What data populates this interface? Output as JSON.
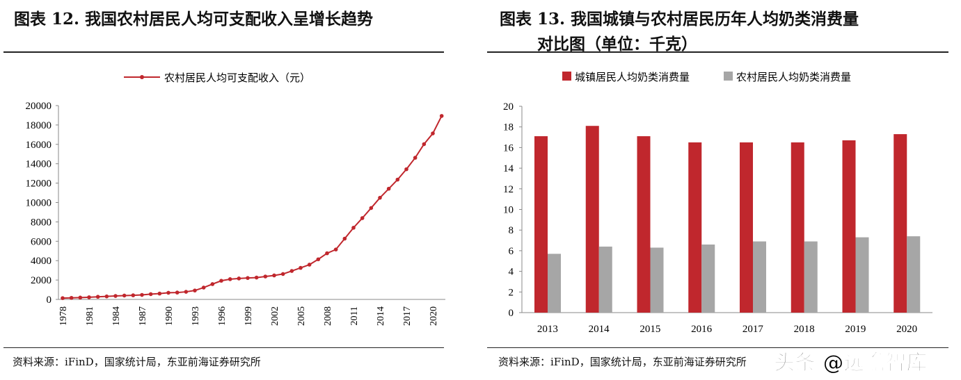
{
  "left": {
    "title": "图表 12. 我国农村居民人均可支配收入呈增长趋势",
    "source": "资料来源：iFinD，国家统计局，东亚前海证券研究所"
  },
  "right": {
    "title_line1": "图表 13. 我国城镇与农村居民历年人均奶类消费量",
    "title_line2": "对比图（单位：千克）",
    "source": "资料来源：iFinD，国家统计局，东亚前海证券研究所"
  },
  "watermark": "头条 @远瞻智库",
  "chart_data": [
    {
      "type": "line",
      "legend": "top-center",
      "series": [
        {
          "name": "农村居民人均可支配收入（元）",
          "color": "#C0272D",
          "x": [
            1978,
            1979,
            1980,
            1981,
            1982,
            1983,
            1984,
            1985,
            1986,
            1987,
            1988,
            1989,
            1990,
            1991,
            1992,
            1993,
            1994,
            1995,
            1996,
            1997,
            1998,
            1999,
            2000,
            2001,
            2002,
            2003,
            2004,
            2005,
            2006,
            2007,
            2008,
            2009,
            2010,
            2011,
            2012,
            2013,
            2014,
            2015,
            2016,
            2017,
            2018,
            2019,
            2020,
            2021
          ],
          "values": [
            134,
            160,
            191,
            223,
            270,
            310,
            355,
            398,
            424,
            463,
            545,
            602,
            686,
            709,
            784,
            922,
            1221,
            1578,
            1926,
            2090,
            2162,
            2210,
            2253,
            2366,
            2476,
            2622,
            2936,
            3255,
            3587,
            4140,
            4761,
            5153,
            6272,
            7394,
            8389,
            9430,
            10489,
            11422,
            12363,
            13432,
            14617,
            16021,
            17131,
            18931
          ]
        }
      ],
      "xticks": [
        "1978",
        "1981",
        "1984",
        "1987",
        "1990",
        "1993",
        "1996",
        "1999",
        "2002",
        "2005",
        "2008",
        "2011",
        "2014",
        "2017",
        "2020"
      ],
      "yticks": [
        "0",
        "2000",
        "4000",
        "6000",
        "8000",
        "10000",
        "12000",
        "14000",
        "16000",
        "18000",
        "20000"
      ],
      "ylim": [
        0,
        20000
      ]
    },
    {
      "type": "bar",
      "legend": "top-center",
      "categories": [
        "2013",
        "2014",
        "2015",
        "2016",
        "2017",
        "2018",
        "2019",
        "2020"
      ],
      "series": [
        {
          "name": "城镇居民人均奶类消费量",
          "color": "#C0272D",
          "values": [
            17.1,
            18.1,
            17.1,
            16.5,
            16.5,
            16.5,
            16.7,
            17.3
          ]
        },
        {
          "name": "农村居民人均奶类消费量",
          "color": "#A6A6A6",
          "values": [
            5.7,
            6.4,
            6.3,
            6.6,
            6.9,
            6.9,
            7.3,
            7.4
          ]
        }
      ],
      "yticks": [
        "0",
        "2",
        "4",
        "6",
        "8",
        "10",
        "12",
        "14",
        "16",
        "18",
        "20"
      ],
      "ylim": [
        0,
        20
      ]
    }
  ]
}
